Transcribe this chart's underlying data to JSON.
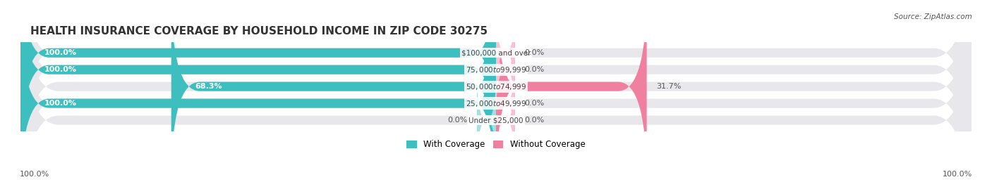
{
  "title": "HEALTH INSURANCE COVERAGE BY HOUSEHOLD INCOME IN ZIP CODE 30275",
  "source": "Source: ZipAtlas.com",
  "categories": [
    "Under $25,000",
    "$25,000 to $49,999",
    "$50,000 to $74,999",
    "$75,000 to $99,999",
    "$100,000 and over"
  ],
  "with_coverage": [
    0.0,
    100.0,
    68.3,
    100.0,
    100.0
  ],
  "without_coverage": [
    0.0,
    0.0,
    31.7,
    0.0,
    0.0
  ],
  "color_with": "#3dbfbf",
  "color_without": "#f080a0",
  "color_with_light": "#a8dede",
  "color_without_light": "#f8c0d0",
  "bg_bar": "#e8e8ec",
  "bg_fig": "#ffffff",
  "title_fontsize": 11,
  "label_fontsize": 8.5,
  "bar_height": 0.55,
  "xlim": [
    -100,
    100
  ],
  "x_left_label": "100.0%",
  "x_right_label": "100.0%",
  "legend_with": "With Coverage",
  "legend_without": "Without Coverage"
}
